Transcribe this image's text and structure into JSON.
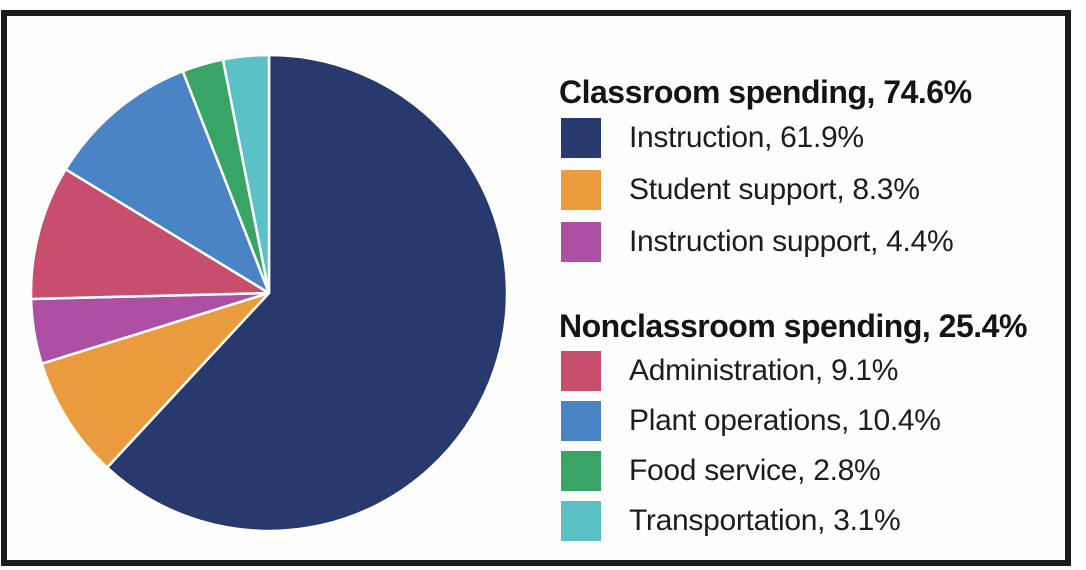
{
  "legend": {
    "groups": [
      {
        "heading_text": "Classroom spending, 74.6%",
        "items": [
          {
            "text": "Instruction, 61.9%",
            "color": "#28396d"
          },
          {
            "text": "Student support, 8.3%",
            "color": "#ea9b3d"
          },
          {
            "text": "Instruction support, 4.4%",
            "color": "#ad50a4"
          }
        ]
      },
      {
        "heading_text": "Nonclassroom spending, 25.4%",
        "items": [
          {
            "text": "Administration, 9.1%",
            "color": "#c84e6e"
          },
          {
            "text": "Plant operations, 10.4%",
            "color": "#4a84c4"
          },
          {
            "text": "Food service, 2.8%",
            "color": "#38a567"
          },
          {
            "text": "Transportation, 3.1%",
            "color": "#5ac2c6"
          }
        ]
      }
    ]
  },
  "chart_data": {
    "type": "pie",
    "title": "",
    "start_angle": "12 o'clock",
    "direction": "clockwise",
    "legend_position": "right",
    "slice_border_color": "#ffffff",
    "group_totals": [
      {
        "label": "Classroom spending",
        "value_pct": 74.6
      },
      {
        "label": "Nonclassroom spending",
        "value_pct": 25.4
      }
    ],
    "slices": [
      {
        "group": "Classroom spending",
        "label": "Instruction",
        "value_pct": 61.9,
        "color": "#28396d"
      },
      {
        "group": "Classroom spending",
        "label": "Student support",
        "value_pct": 8.3,
        "color": "#ea9b3d"
      },
      {
        "group": "Classroom spending",
        "label": "Instruction support",
        "value_pct": 4.4,
        "color": "#ad50a4"
      },
      {
        "group": "Nonclassroom spending",
        "label": "Administration",
        "value_pct": 9.1,
        "color": "#c84e6e"
      },
      {
        "group": "Nonclassroom spending",
        "label": "Plant operations",
        "value_pct": 10.4,
        "color": "#4a84c4"
      },
      {
        "group": "Nonclassroom spending",
        "label": "Food service",
        "value_pct": 2.8,
        "color": "#38a567"
      },
      {
        "group": "Nonclassroom spending",
        "label": "Transportation",
        "value_pct": 3.1,
        "color": "#5ac2c6"
      }
    ]
  },
  "colors": {
    "frame": "#1b1b1b",
    "background": "#ffffff"
  }
}
